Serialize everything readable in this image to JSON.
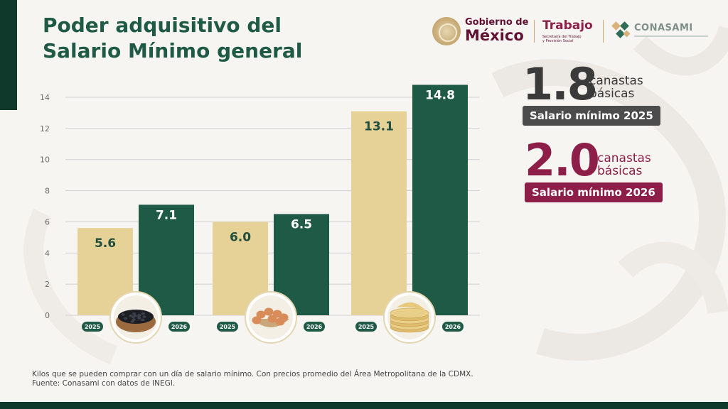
{
  "header": {
    "title_line1": "Poder adquisitivo del",
    "title_line2": "Salario Mínimo general",
    "logos": {
      "gobierno_line1": "Gobierno de",
      "gobierno_line2": "México",
      "trabajo": "Trabajo",
      "trabajo_sub1": "Secretaría del Trabajo",
      "trabajo_sub2": "y Previsión Social",
      "conasami": "CONASAMI"
    }
  },
  "chart_data": {
    "type": "bar",
    "title": "",
    "xlabel": "",
    "ylabel": "",
    "ylim": [
      0,
      14
    ],
    "yticks": [
      0,
      2,
      4,
      6,
      8,
      10,
      12,
      14
    ],
    "grid": true,
    "categories": [
      "frijol",
      "huevo",
      "tortilla"
    ],
    "category_icons": [
      "beans-bowl-icon",
      "eggs-basket-icon",
      "tortillas-stack-icon"
    ],
    "series": [
      {
        "name": "2025",
        "values": [
          5.6,
          6.0,
          13.1
        ],
        "labels": [
          "5.6",
          "6.0",
          "13.1"
        ],
        "color": "#e6d196"
      },
      {
        "name": "2026",
        "values": [
          7.1,
          6.5,
          14.8
        ],
        "labels": [
          "7.1",
          "6.5",
          "14.8"
        ],
        "color": "#1f5a47"
      }
    ]
  },
  "stats": {
    "y2025": {
      "value": "1.8",
      "unit_line1": "canastas",
      "unit_line2": "básicas",
      "label": "Salario mínimo 2025",
      "color": "#3a3a3a"
    },
    "y2026": {
      "value": "2.0",
      "unit_line1": "canastas",
      "unit_line2": "básicas",
      "label": "Salario mínimo 2026",
      "color": "#8d1e47"
    }
  },
  "footnote": {
    "line1": "Kilos que se pueden comprar con un día de salario mínimo. Con precios promedio del Área Metropolitana de la CDMX.",
    "line2": "Fuente: Conasami con datos de INEGI."
  }
}
